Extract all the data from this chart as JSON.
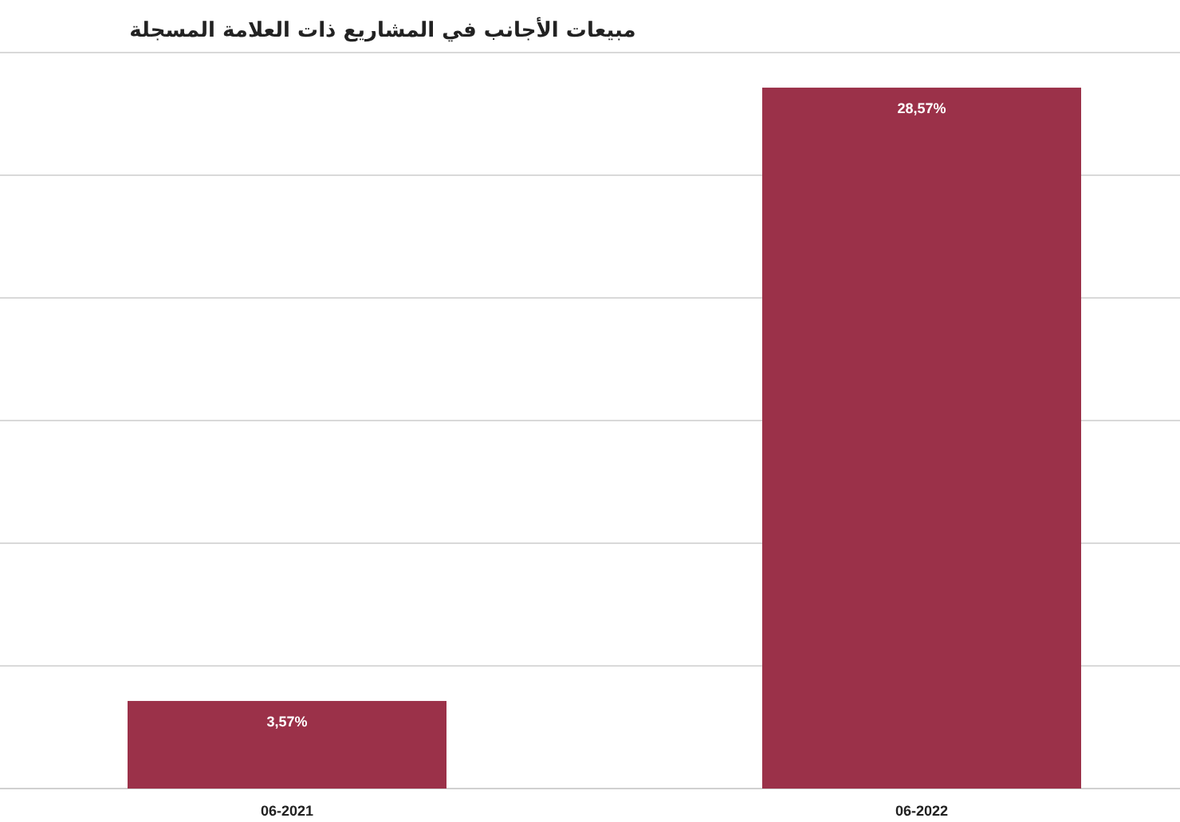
{
  "chart_data": {
    "type": "bar",
    "title": "مبيعات الأجانب في المشاريع ذات العلامة المسجلة",
    "categories": [
      "06-2021",
      "06-2022"
    ],
    "values": [
      3.57,
      28.57
    ],
    "value_labels": [
      "3,57%",
      "28,57%"
    ],
    "color": "#9b3149",
    "tick_labels": "x",
    "grid": "y"
  }
}
